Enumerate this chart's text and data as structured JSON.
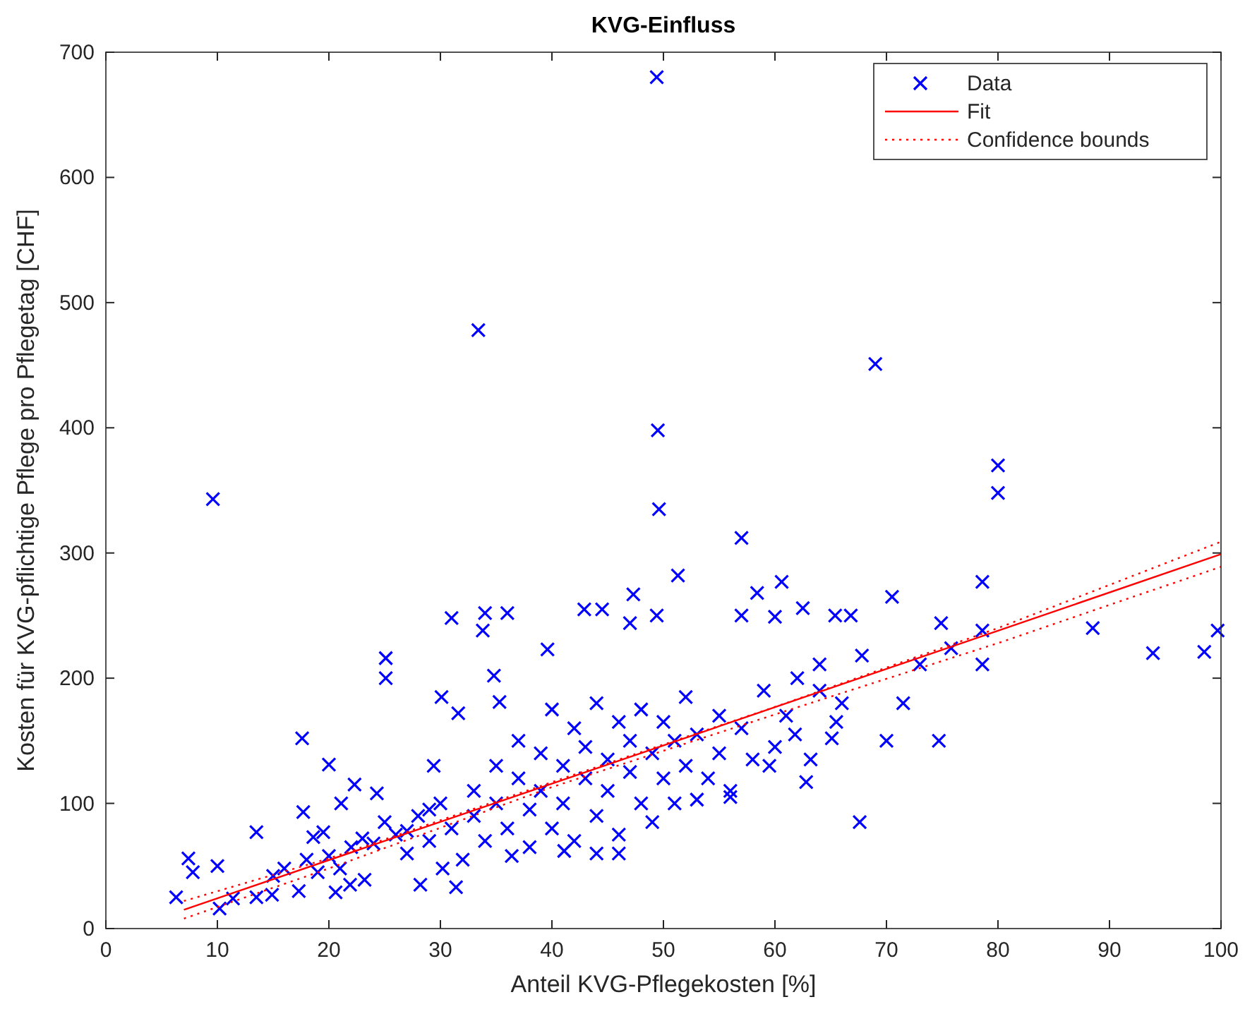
{
  "chart_data": {
    "type": "scatter",
    "title": "KVG-Einfluss",
    "xlabel": "Anteil KVG-Pflegekosten [%]",
    "ylabel": "Kosten für KVG-pflichtige Pflege pro Pflegetag [CHF]",
    "xlim": [
      0,
      100
    ],
    "ylim": [
      0,
      700
    ],
    "xticks": [
      0,
      10,
      20,
      30,
      40,
      50,
      60,
      70,
      80,
      90,
      100
    ],
    "yticks": [
      0,
      100,
      200,
      300,
      400,
      500,
      600,
      700
    ],
    "grid": false,
    "legend": "top right",
    "series": [
      {
        "name": "Data",
        "color": "#0000ff",
        "marker": "cross",
        "x": [
          49.4,
          33.4,
          9.6,
          69,
          80,
          80,
          57,
          88.5,
          93.9,
          98.5,
          99.7,
          78.6,
          78.6,
          78.6,
          74.9,
          75.8,
          73,
          74.7,
          70,
          71.5,
          67.6,
          70.5,
          67.8,
          62.8,
          63.2,
          65.1,
          65.5,
          66.8,
          65.4,
          62.5,
          60.6,
          58.4,
          57,
          51.3,
          60,
          56,
          59.5,
          53,
          61.8,
          64,
          49.5,
          49.6,
          6.3,
          7.4,
          7.8,
          10,
          10.2,
          11.4,
          13.5,
          13.5,
          14.9,
          17.6,
          17.7,
          17.3,
          20,
          20.6,
          21.1,
          22.3,
          24.3,
          25.1,
          25.1,
          19.5,
          18.6,
          21.9,
          23.2,
          29.4,
          30.1,
          31.6,
          31,
          34,
          33.8,
          36,
          34.8,
          35.3,
          39.6,
          42.9,
          44.5,
          47.3,
          47,
          49.4,
          28.2,
          31.4,
          30.2,
          41.1,
          36.4,
          26,
          27,
          28,
          29,
          30,
          31,
          32,
          33,
          33,
          34,
          35,
          35,
          36,
          37,
          37,
          38,
          38,
          39,
          39,
          40,
          40,
          41,
          41,
          42,
          42,
          43,
          43,
          44,
          44,
          45,
          45,
          46,
          46,
          47,
          47,
          48,
          48,
          49,
          49,
          50,
          50,
          51,
          51,
          52,
          52,
          53,
          54,
          55,
          55,
          56,
          57,
          58,
          59,
          60,
          61,
          62,
          64,
          66,
          15,
          16,
          18,
          20,
          22,
          23,
          24,
          25,
          19,
          21,
          27,
          29,
          44,
          46
        ],
        "values": [
          680,
          478,
          343,
          451,
          370,
          348,
          312,
          240,
          220,
          221,
          238,
          277,
          238,
          211,
          244,
          224,
          211,
          150,
          150,
          180,
          85,
          265,
          218,
          117,
          135,
          152,
          165,
          250,
          250,
          256,
          277,
          268,
          250,
          282,
          249,
          105,
          130,
          103,
          155,
          211,
          398,
          335,
          25,
          56,
          45,
          50,
          16,
          24,
          77,
          25,
          27,
          152,
          93,
          30,
          131,
          29,
          100,
          115,
          108,
          216,
          200,
          77,
          73,
          35,
          39,
          130,
          185,
          172,
          248,
          252,
          238,
          252,
          202,
          181,
          223,
          255,
          255,
          267,
          244,
          250,
          35,
          33,
          48,
          62,
          58,
          75,
          60,
          90,
          70,
          100,
          80,
          55,
          110,
          90,
          70,
          130,
          100,
          80,
          120,
          150,
          65,
          95,
          140,
          110,
          175,
          80,
          130,
          100,
          160,
          70,
          120,
          145,
          90,
          180,
          110,
          135,
          165,
          75,
          125,
          150,
          100,
          175,
          140,
          85,
          120,
          165,
          150,
          100,
          130,
          185,
          155,
          120,
          140,
          170,
          110,
          160,
          135,
          190,
          145,
          170,
          200,
          190,
          180,
          42,
          48,
          55,
          58,
          65,
          72,
          68,
          85,
          45,
          48,
          78,
          95,
          60,
          60
        ]
      },
      {
        "name": "Fit",
        "type": "line",
        "color": "#ff0000",
        "line_style": "solid",
        "x": [
          7,
          100
        ],
        "values": [
          15,
          299
        ]
      },
      {
        "name": "Confidence bounds",
        "type": "line",
        "color": "#ff0000",
        "line_style": "dotted",
        "x": [
          7,
          20,
          40,
          60,
          80,
          100
        ],
        "values": [
          22,
          56,
          117,
          177,
          240,
          309
        ]
      },
      {
        "type": "line",
        "color": "#ff0000",
        "line_style": "dotted",
        "x": [
          7,
          20,
          40,
          60,
          80,
          100
        ],
        "values": [
          8,
          48,
          113,
          171,
          228,
          289
        ]
      }
    ]
  }
}
